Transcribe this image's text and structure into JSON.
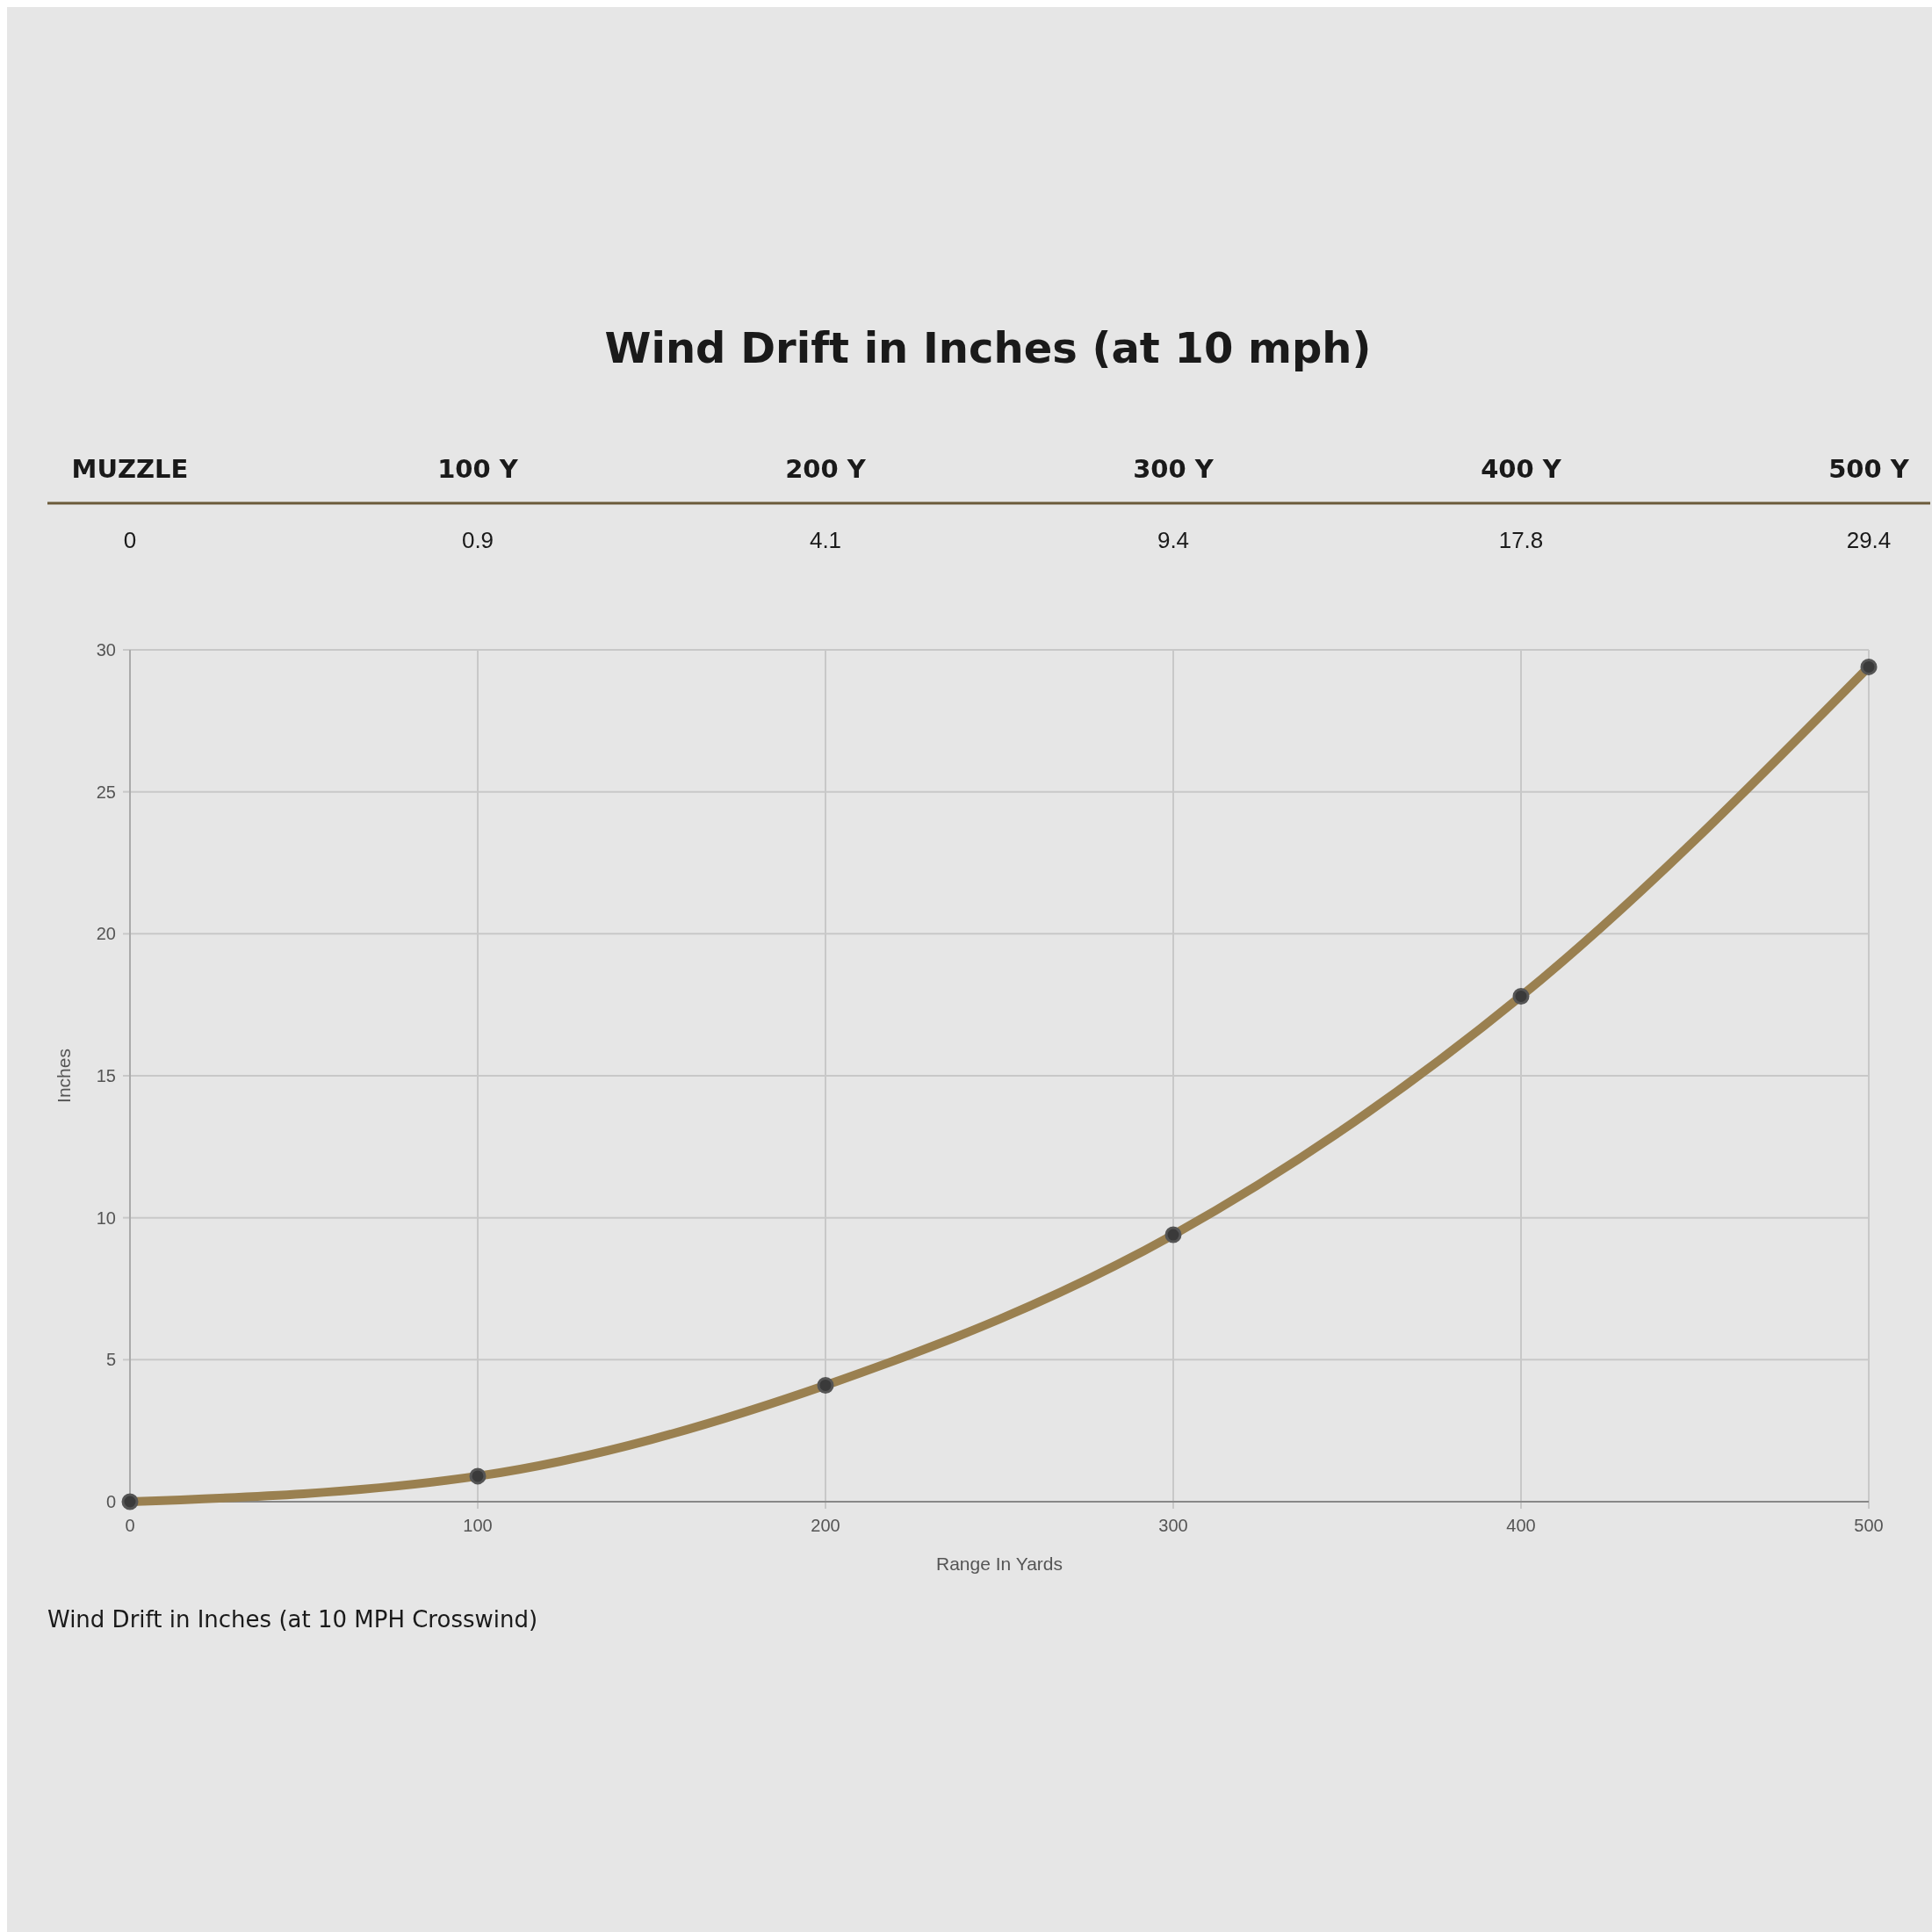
{
  "chart_data": {
    "type": "line",
    "title": "Wind Drift in Inches (at 10 mph)",
    "xlabel": "Range In Yards",
    "ylabel": "Inches",
    "x": [
      0,
      100,
      200,
      300,
      400,
      500
    ],
    "series": [
      {
        "color": "#9a8050",
        "values": [
          0,
          0.9,
          4.1,
          9.4,
          17.8,
          29.4
        ]
      }
    ],
    "xlim": [
      0,
      500
    ],
    "xticks": [
      0,
      100,
      200,
      300,
      400,
      500
    ],
    "ylim": [
      0,
      30
    ],
    "yticks": [
      0,
      5,
      10,
      15,
      20,
      25,
      30
    ],
    "x2lim": [
      0,
      500
    ],
    "x2ticks": [
      {
        "value": 0,
        "label": "MUZZLE"
      },
      {
        "value": 100,
        "label": "100 Y"
      },
      {
        "value": 200,
        "label": "200 Y"
      },
      {
        "value": 300,
        "label": "300 Y"
      },
      {
        "value": 400,
        "label": "400 Y"
      },
      {
        "value": 500,
        "label": "500 Y"
      }
    ],
    "grid": true,
    "marker": "circle",
    "line_style": "solid",
    "annotations": [
      "0",
      "0.9",
      "4.1",
      "9.4",
      "17.8",
      "29.4",
      "Wind Drift in Inches (at 10 MPH Crosswind)"
    ]
  }
}
